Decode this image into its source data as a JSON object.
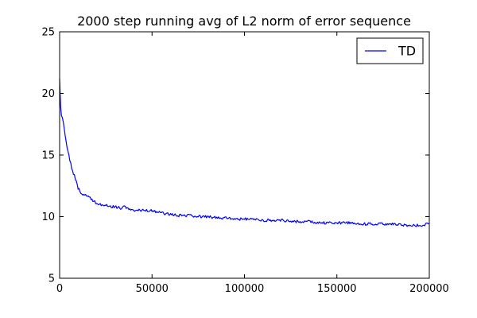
{
  "chart_data": {
    "type": "line",
    "title": "2000 step running avg of L2 norm of error sequence",
    "xlabel": "",
    "ylabel": "",
    "xlim": [
      0,
      200000
    ],
    "ylim": [
      5,
      25
    ],
    "x_ticks": [
      0,
      50000,
      100000,
      150000,
      200000
    ],
    "y_ticks": [
      5,
      10,
      15,
      20,
      25
    ],
    "x_tick_labels": [
      "0",
      "50000",
      "100000",
      "150000",
      "200000"
    ],
    "y_tick_labels": [
      "5",
      "10",
      "15",
      "20",
      "25"
    ],
    "grid": false,
    "legend": {
      "position": "top-right",
      "entries": [
        "TD"
      ]
    },
    "series": [
      {
        "name": "TD",
        "color": "#0000ff",
        "x": [
          0,
          500,
          1000,
          2000,
          3000,
          4000,
          5000,
          6000,
          7000,
          8000,
          9000,
          10000,
          11000,
          12000,
          14000,
          16000,
          18000,
          20000,
          22000,
          25000,
          28000,
          30000,
          33000,
          35000,
          38000,
          40000,
          45000,
          50000,
          55000,
          60000,
          65000,
          70000,
          75000,
          80000,
          85000,
          90000,
          95000,
          100000,
          105000,
          110000,
          115000,
          120000,
          125000,
          130000,
          135000,
          140000,
          145000,
          150000,
          155000,
          160000,
          165000,
          170000,
          175000,
          180000,
          185000,
          190000,
          195000,
          200000
        ],
        "y": [
          21.2,
          19.0,
          18.2,
          17.7,
          16.5,
          15.7,
          15.0,
          14.3,
          13.7,
          13.3,
          12.9,
          12.3,
          12.1,
          11.9,
          11.7,
          11.6,
          11.3,
          11.1,
          11.0,
          10.9,
          10.8,
          10.8,
          10.7,
          10.8,
          10.6,
          10.5,
          10.5,
          10.5,
          10.3,
          10.2,
          10.1,
          10.1,
          10.0,
          10.0,
          9.9,
          9.9,
          9.8,
          9.8,
          9.8,
          9.7,
          9.7,
          9.7,
          9.6,
          9.6,
          9.6,
          9.5,
          9.5,
          9.5,
          9.5,
          9.5,
          9.4,
          9.4,
          9.4,
          9.4,
          9.3,
          9.3,
          9.3,
          9.4
        ]
      }
    ]
  }
}
